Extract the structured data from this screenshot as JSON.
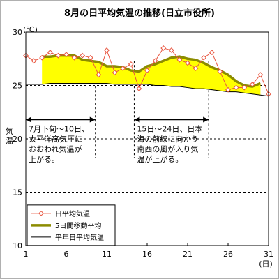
{
  "title": "8月の日平均気温の推移(日立市役所)",
  "chart_data": {
    "type": "line",
    "title": "8月の日平均気温の推移(日立市役所)",
    "y_unit": "(℃)",
    "x_unit": "(日)",
    "ylabel": "気温",
    "xlabel": "",
    "ylim": [
      10,
      30
    ],
    "xlim": [
      1,
      31
    ],
    "y_ticks": [
      "10",
      "15",
      "20",
      "25",
      "30"
    ],
    "x_ticks": [
      "1",
      "6",
      "11",
      "16",
      "21",
      "26",
      "31"
    ],
    "x": [
      1,
      2,
      3,
      4,
      5,
      6,
      7,
      8,
      9,
      10,
      11,
      12,
      13,
      14,
      15,
      16,
      17,
      18,
      19,
      20,
      21,
      22,
      23,
      24,
      25,
      26,
      27,
      28,
      29,
      30,
      31
    ],
    "series": [
      {
        "name": "日平均気温",
        "color": "#e8543e",
        "marker": "diamond",
        "values": [
          27.8,
          27.3,
          27.6,
          28.1,
          27.8,
          27.9,
          27.6,
          27.8,
          27.6,
          26.0,
          28.3,
          26.2,
          26.6,
          27.0,
          24.7,
          26.4,
          27.3,
          28.5,
          28.3,
          27.4,
          27.1,
          26.6,
          27.6,
          28.1,
          26.3,
          24.6,
          24.8,
          24.8,
          25.1,
          26.0,
          24.2
        ]
      },
      {
        "name": "5日間移動平均",
        "color": "#8c8c00",
        "values": [
          null,
          null,
          27.7,
          27.7,
          27.8,
          27.8,
          27.8,
          27.4,
          27.3,
          27.2,
          26.8,
          26.8,
          26.7,
          26.4,
          26.3,
          26.8,
          27.0,
          27.3,
          27.6,
          27.7,
          27.5,
          27.4,
          27.1,
          26.7,
          26.4,
          26.0,
          25.4,
          25.0,
          24.9,
          25.2,
          null
        ]
      },
      {
        "name": "平年日平均気温",
        "color": "#000000",
        "values": [
          25.1,
          25.1,
          25.1,
          25.2,
          25.2,
          25.2,
          25.2,
          25.2,
          25.2,
          25.2,
          25.2,
          25.1,
          25.1,
          25.1,
          25.1,
          25.1,
          25.0,
          25.0,
          24.9,
          24.9,
          24.8,
          24.7,
          24.7,
          24.6,
          24.5,
          24.4,
          24.4,
          24.3,
          24.2,
          24.1,
          24.0
        ]
      }
    ],
    "fill_between": {
      "upper": "5日間移動平均",
      "lower": "平年日平均気温",
      "color": "#ffff00"
    },
    "grid": {
      "y_dashed_at": [
        15,
        20,
        25
      ]
    },
    "vertical_markers": [
      9.6,
      14.4,
      23.6
    ],
    "annotations": [
      {
        "arrow_from": 1,
        "arrow_to": 9.6,
        "arrow_y": 21.8,
        "lines": [
          "7月下旬～10日、",
          "太平洋高気圧に",
          "おおわれ気温が",
          "上がる。"
        ]
      },
      {
        "arrow_from": 14.4,
        "arrow_to": 23.6,
        "arrow_y": 21.8,
        "lines": [
          "15日～24日、日本",
          "海の前線に向かう",
          "南西の風が入り気",
          "温が上がる。"
        ]
      }
    ],
    "legend_position": "bottom-left"
  }
}
